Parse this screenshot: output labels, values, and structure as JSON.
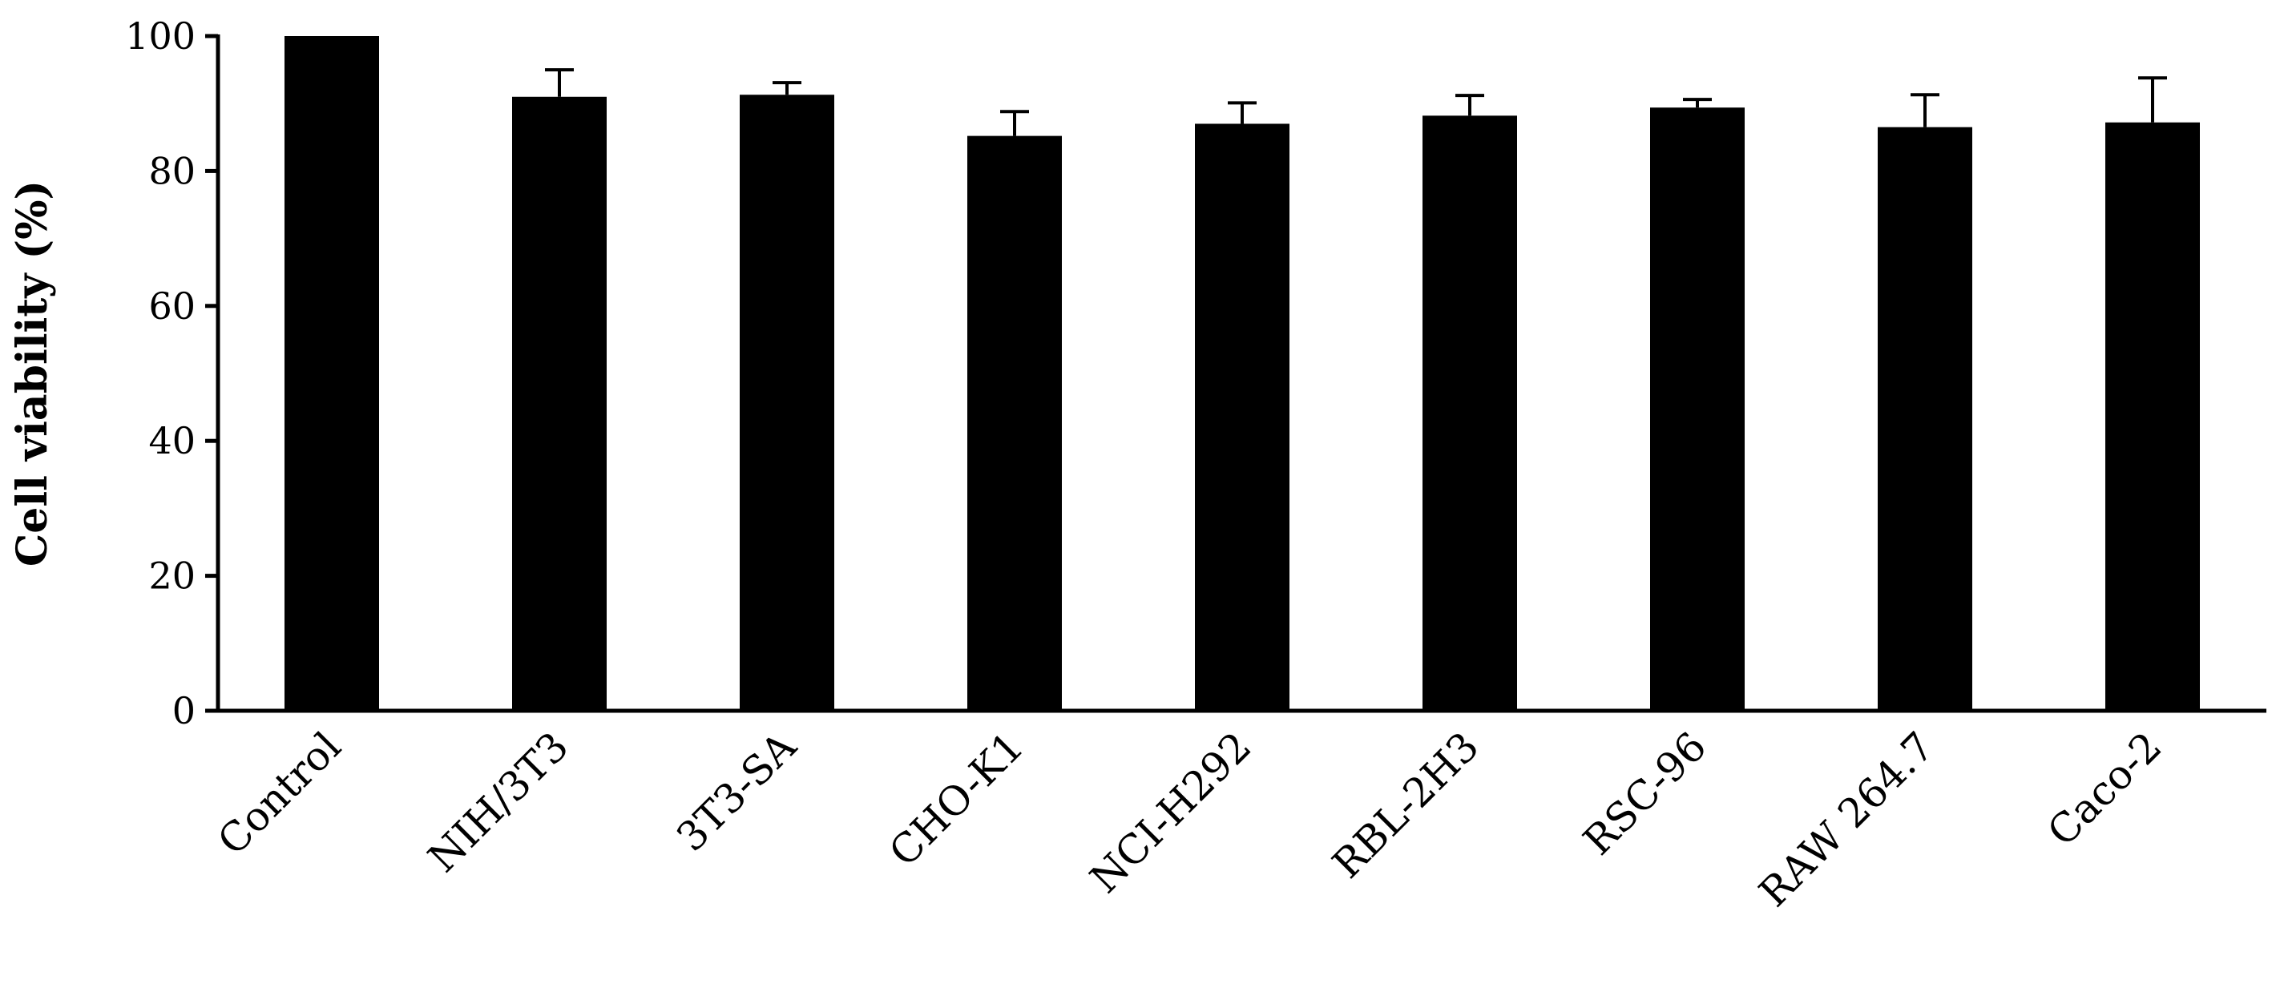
{
  "chart_data": {
    "type": "bar",
    "ylabel": "Cell viability (%)",
    "xlabel": "",
    "ylim": [
      0,
      100
    ],
    "yticks": [
      0,
      20,
      40,
      60,
      80,
      100
    ],
    "categories": [
      "Control",
      "NIH/3T3",
      "3T3-SA",
      "CHO-K1",
      "NCI-H292",
      "RBL-2H3",
      "RSC-96",
      "RAW 264.7",
      "Caco-2"
    ],
    "values": [
      100,
      91,
      91.3,
      85.2,
      87,
      88.2,
      89.4,
      86.5,
      87.2
    ],
    "errors": [
      0,
      4,
      1.8,
      3.6,
      3.1,
      3,
      1.2,
      4.8,
      6.6
    ],
    "bar_color": "#000000",
    "grid": false,
    "legend": "none"
  }
}
